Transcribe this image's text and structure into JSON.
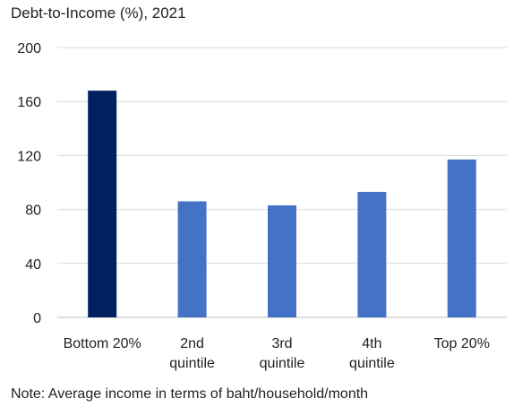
{
  "chart_data": {
    "type": "bar",
    "title": "Debt-to-Income (%), 2021",
    "categories": [
      [
        "Bottom 20%"
      ],
      [
        "2nd",
        "quintile"
      ],
      [
        "3rd",
        "quintile"
      ],
      [
        "4th",
        "quintile"
      ],
      [
        "Top 20%"
      ]
    ],
    "values": [
      168,
      86,
      83,
      93,
      117
    ],
    "bar_colors": [
      "#002060",
      "#4472C4",
      "#4472C4",
      "#4472C4",
      "#4472C4"
    ],
    "ylim": [
      0,
      200
    ],
    "yticks": [
      0,
      40,
      80,
      120,
      160,
      200
    ],
    "grid": true,
    "xlabel": "",
    "ylabel": "",
    "note": "Note: Average income in terms of baht/household/month"
  }
}
